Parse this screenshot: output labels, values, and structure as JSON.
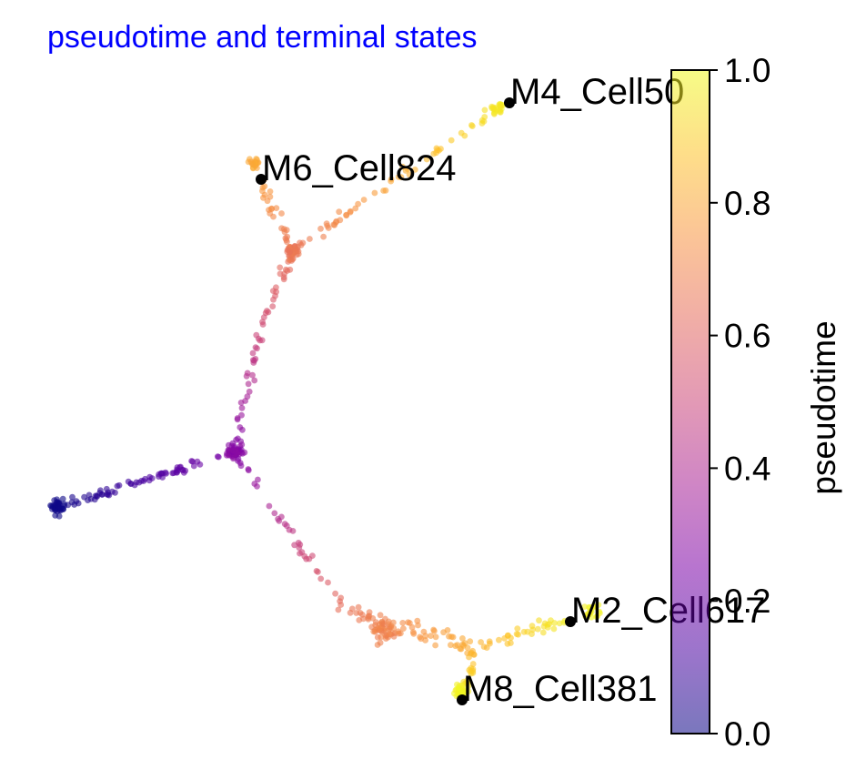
{
  "chart_data": {
    "type": "scatter",
    "title": "pseudotime and terminal states",
    "xlabel": "",
    "ylabel": "",
    "axes_visible": false,
    "grid": false,
    "color_by": "pseudotime",
    "colormap": "plasma",
    "colors": {
      "title": "#0000ff",
      "terminal_point": "#000000"
    },
    "colorbar": {
      "label": "pseudotime",
      "range": [
        0.0,
        1.0
      ],
      "ticks": [
        {
          "value": 0.0,
          "label": "0.0"
        },
        {
          "value": 0.2,
          "label": "0.2"
        },
        {
          "value": 0.4,
          "label": "0.4"
        },
        {
          "value": 0.6,
          "label": "0.6"
        },
        {
          "value": 0.8,
          "label": "0.8"
        },
        {
          "value": 1.0,
          "label": "1.0"
        }
      ]
    },
    "terminal_states": [
      {
        "label": "M4_Cell50",
        "pseudotime": 0.97
      },
      {
        "label": "M6_Cell824",
        "pseudotime": 0.78
      },
      {
        "label": "M2_Cell617",
        "pseudotime": 0.98
      },
      {
        "label": "M8_Cell381",
        "pseudotime": 0.99
      }
    ]
  }
}
